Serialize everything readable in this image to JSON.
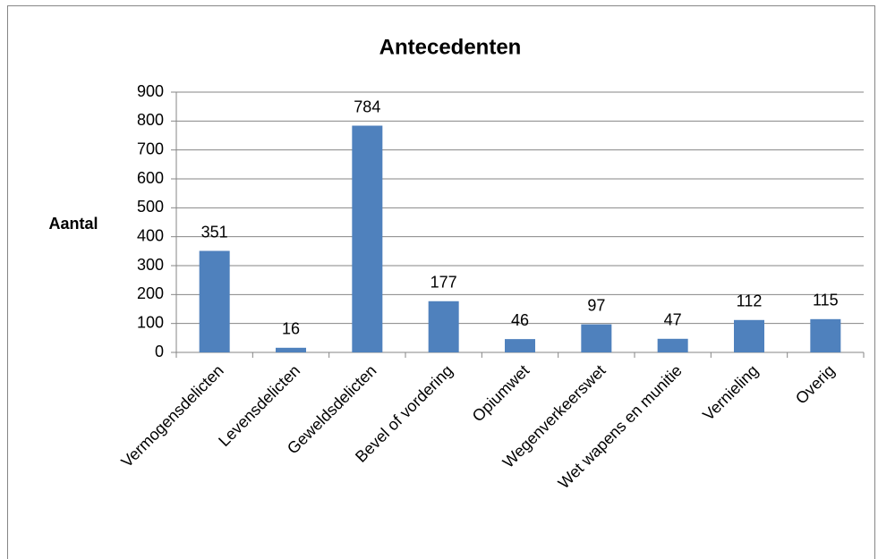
{
  "chart_data": {
    "type": "bar",
    "title": "Antecedenten",
    "y_label": "Aantal",
    "categories": [
      "Vermogensdelicten",
      "Levensdelicten",
      "Geweldsdelicten",
      "Bevel of vordering",
      "Opiumwet",
      "Wegenverkeerswet",
      "Wet wapens en munitie",
      "Vernieling",
      "Overig"
    ],
    "values": [
      351,
      16,
      784,
      177,
      46,
      97,
      47,
      112,
      115
    ],
    "color": "#4f81bd",
    "ylim": [
      0,
      900
    ],
    "yticks": [
      0,
      100,
      200,
      300,
      400,
      500,
      600,
      700,
      800,
      900
    ],
    "grid": true
  }
}
